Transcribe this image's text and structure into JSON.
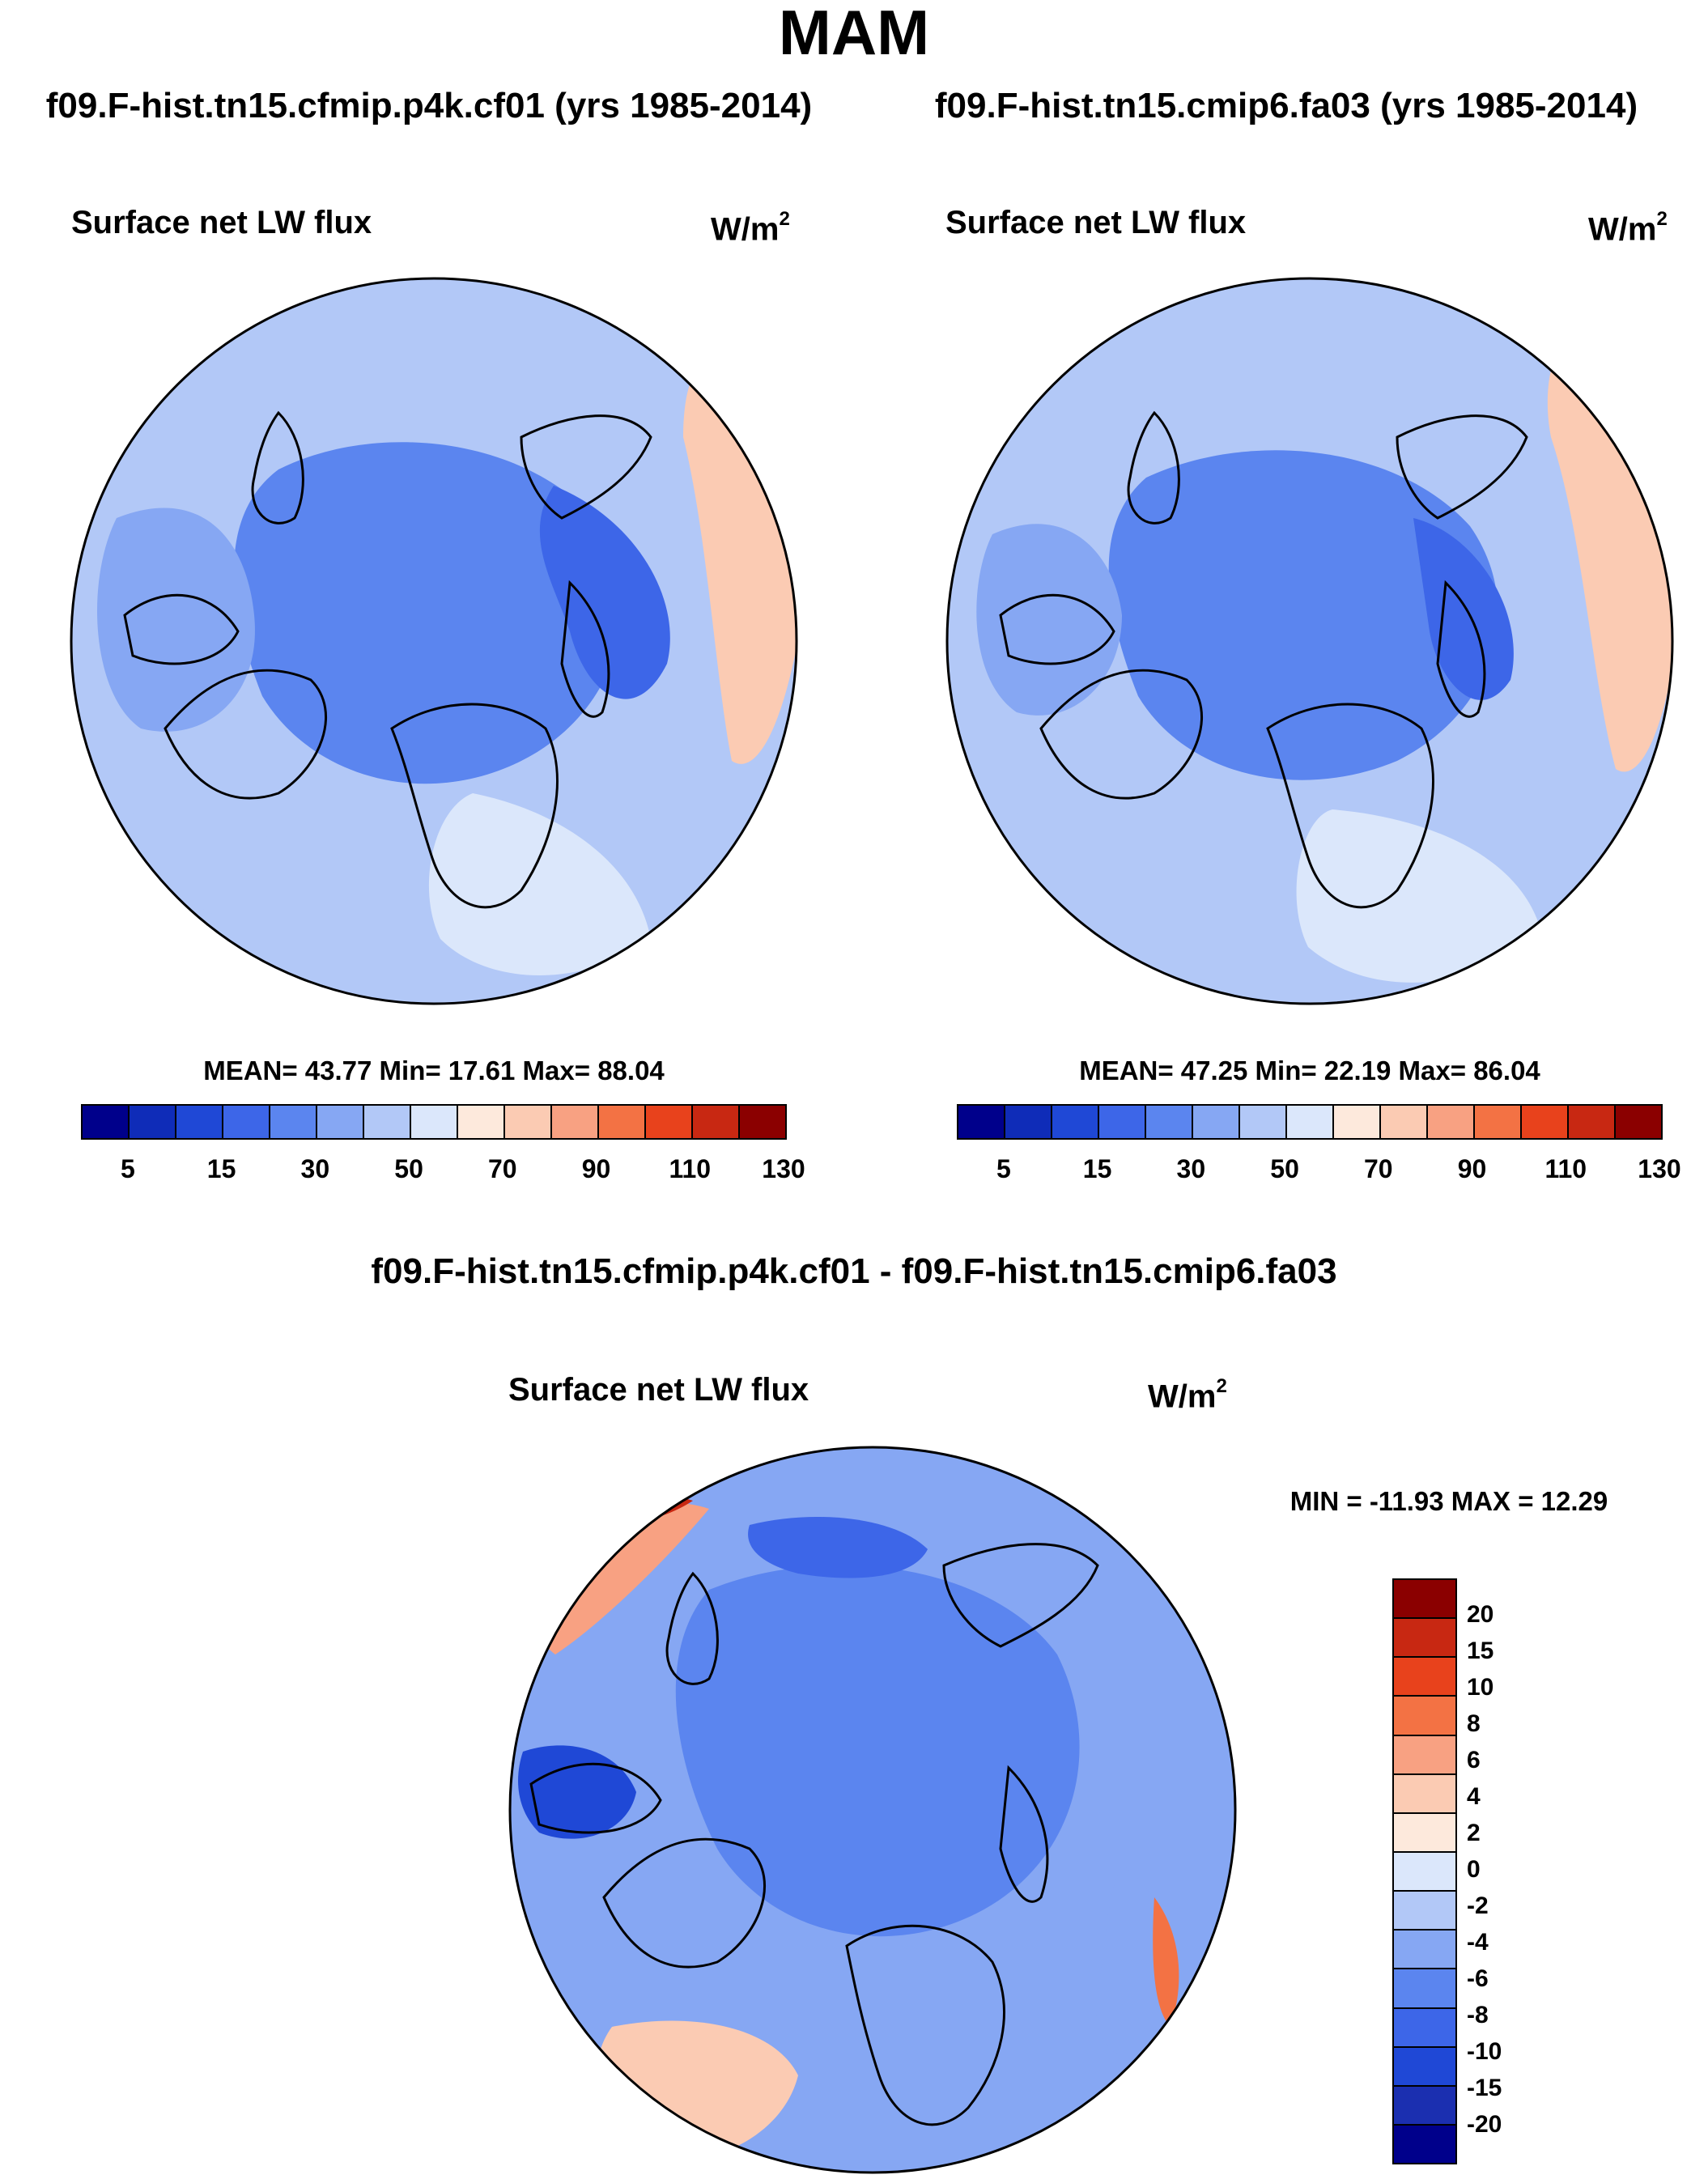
{
  "title": "MAM",
  "colors": {
    "palette": [
      "#00008b",
      "#0f2cb8",
      "#1f48d6",
      "#3d66e8",
      "#5b85ef",
      "#86a7f3",
      "#b2c8f7",
      "#dbe7fb",
      "#fde9dc",
      "#fbcbb3",
      "#f8a182",
      "#f37244",
      "#e8421c",
      "#c82812",
      "#8b0000"
    ],
    "diff_palette": [
      "#00008b",
      "#1b2fb0",
      "#1f48d6",
      "#3d66e8",
      "#5b85ef",
      "#86a7f3",
      "#b2c8f7",
      "#dbe7fb",
      "#fde9dc",
      "#fbcbb3",
      "#f8a182",
      "#f37244",
      "#e8421c",
      "#c82812",
      "#8b0000"
    ]
  },
  "panels": [
    {
      "run_title": "f09.F-hist.tn15.cfmip.p4k.cf01 (yrs 1985-2014)",
      "variable": "Surface net LW flux",
      "units_base": "W/m",
      "units_exp": "2",
      "stats": "MEAN=  43.77  Min=  17.61  Max=  88.04",
      "colorbar_labels": [
        "5",
        "15",
        "30",
        "50",
        "70",
        "90",
        "110",
        "130"
      ],
      "blob_colors": [
        "#5b85ef",
        "#3d66e8",
        "#86a7f3",
        "#b2c8f7",
        "#fbcbb3",
        "#dbe7fb"
      ]
    },
    {
      "run_title": "f09.F-hist.tn15.cmip6.fa03 (yrs 1985-2014)",
      "variable": "Surface net LW flux",
      "units_base": "W/m",
      "units_exp": "2",
      "stats": "MEAN=  47.25  Min=  22.19  Max=  86.04",
      "colorbar_labels": [
        "5",
        "15",
        "30",
        "50",
        "70",
        "90",
        "110",
        "130"
      ],
      "blob_colors": [
        "#5b85ef",
        "#3d66e8",
        "#86a7f3",
        "#b2c8f7",
        "#fbcbb3",
        "#dbe7fb"
      ]
    }
  ],
  "difference": {
    "title": "f09.F-hist.tn15.cfmip.p4k.cf01 - f09.F-hist.tn15.cmip6.fa03",
    "variable": "Surface net LW flux",
    "units_base": "W/m",
    "units_exp": "2",
    "stats": "MIN = -11.93 MAX =  12.29",
    "colorbar_labels": [
      "20",
      "15",
      "10",
      "8",
      "6",
      "4",
      "2",
      "0",
      "-2",
      "-4",
      "-6",
      "-8",
      "-10",
      "-15",
      "-20"
    ],
    "blob_colors": [
      "#5b85ef",
      "#3d66e8",
      "#1f48d6",
      "#fbcbb3",
      "#f8a182",
      "#86a7f3"
    ]
  }
}
